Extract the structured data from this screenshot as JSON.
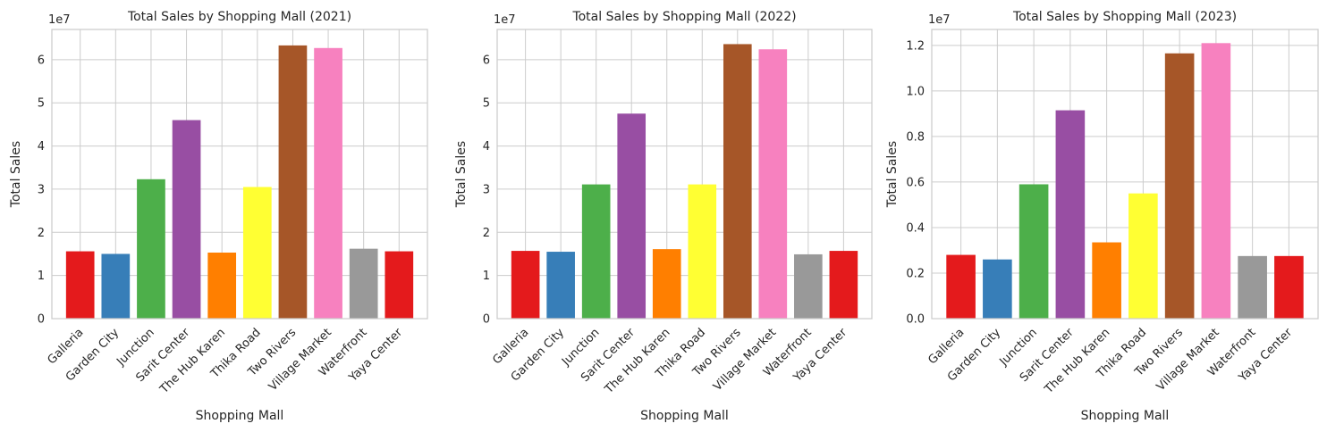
{
  "chart_data": [
    {
      "type": "bar",
      "title": "Total Sales by Shopping Mall (2021)",
      "xlabel": "Shopping Mall",
      "ylabel": "Total Sales",
      "offset_label": "1e7",
      "categories": [
        "Galleria",
        "Garden City",
        "Junction",
        "Sarit Center",
        "The Hub Karen",
        "Thika Road",
        "Two Rivers",
        "Village Market",
        "Waterfront",
        "Yaya Center"
      ],
      "values": [
        1.56,
        1.5,
        3.23,
        4.6,
        1.53,
        3.05,
        6.33,
        6.27,
        1.62,
        1.56
      ],
      "ylim": [
        0,
        6.7
      ],
      "yticks": [
        0,
        1,
        2,
        3,
        4,
        5,
        6
      ],
      "ytick_labels": [
        "0",
        "1",
        "2",
        "3",
        "4",
        "5",
        "6"
      ],
      "grid": true
    },
    {
      "type": "bar",
      "title": "Total Sales by Shopping Mall (2022)",
      "xlabel": "Shopping Mall",
      "ylabel": "Total Sales",
      "offset_label": "1e7",
      "categories": [
        "Galleria",
        "Garden City",
        "Junction",
        "Sarit Center",
        "The Hub Karen",
        "Thika Road",
        "Two Rivers",
        "Village Market",
        "Waterfront",
        "Yaya Center"
      ],
      "values": [
        1.57,
        1.55,
        3.11,
        4.75,
        1.61,
        3.11,
        6.36,
        6.24,
        1.49,
        1.57
      ],
      "ylim": [
        0,
        6.7
      ],
      "yticks": [
        0,
        1,
        2,
        3,
        4,
        5,
        6
      ],
      "ytick_labels": [
        "0",
        "1",
        "2",
        "3",
        "4",
        "5",
        "6"
      ],
      "grid": true
    },
    {
      "type": "bar",
      "title": "Total Sales by Shopping Mall (2023)",
      "xlabel": "Shopping Mall",
      "ylabel": "Total Sales",
      "offset_label": "1e7",
      "categories": [
        "Galleria",
        "Garden City",
        "Junction",
        "Sarit Center",
        "The Hub Karen",
        "Thika Road",
        "Two Rivers",
        "Village Market",
        "Waterfront",
        "Yaya Center"
      ],
      "values": [
        0.28,
        0.26,
        0.59,
        0.915,
        0.335,
        0.55,
        1.165,
        1.21,
        0.275,
        0.275
      ],
      "ylim": [
        0,
        1.27
      ],
      "yticks": [
        0,
        0.2,
        0.4,
        0.6,
        0.8,
        1.0,
        1.2
      ],
      "ytick_labels": [
        "0.0",
        "0.2",
        "0.4",
        "0.6",
        "0.8",
        "1.0",
        "1.2"
      ],
      "grid": true
    }
  ],
  "colors": [
    "#e41a1c",
    "#377eb8",
    "#4daf4a",
    "#984ea3",
    "#ff7f00",
    "#ffff33",
    "#a65628",
    "#f781bf",
    "#999999",
    "#e41a1c"
  ]
}
